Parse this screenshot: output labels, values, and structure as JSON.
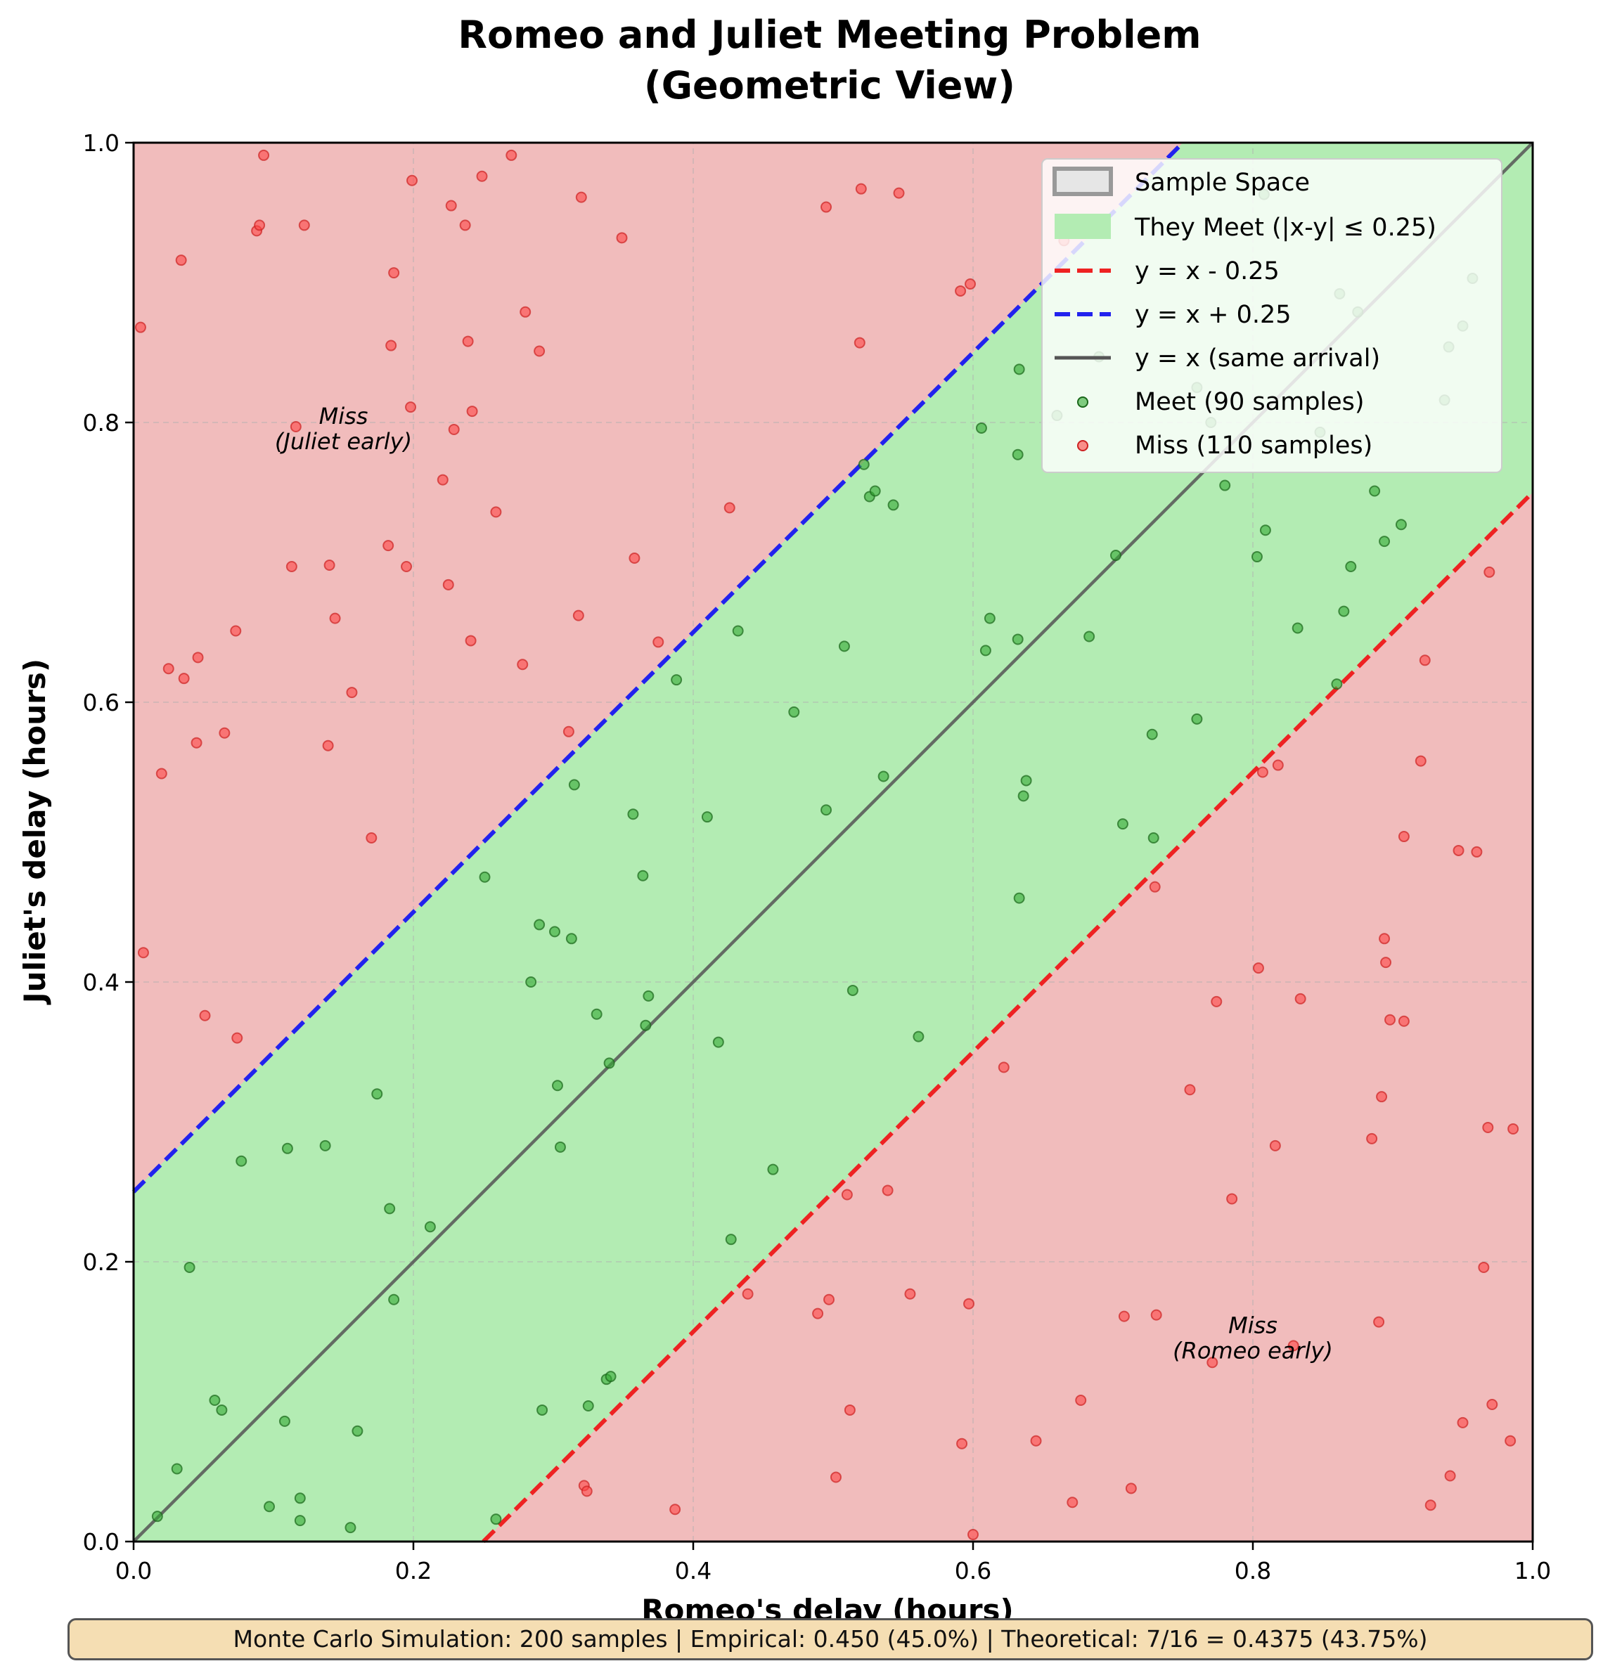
{
  "chart_data": {
    "type": "scatter",
    "title": "Romeo and Juliet Meeting Problem",
    "subtitle": "(Geometric View)",
    "xlabel": "Romeo's delay (hours)",
    "ylabel": "Juliet's delay (hours)",
    "xlim": [
      0,
      1
    ],
    "ylim": [
      0,
      1
    ],
    "xticks": [
      "0.0",
      "0.2",
      "0.4",
      "0.6",
      "0.8",
      "1.0"
    ],
    "yticks": [
      "0.0",
      "0.2",
      "0.4",
      "0.6",
      "0.8",
      "1.0"
    ],
    "grid": true,
    "legend_position": "top-right",
    "tolerance": 0.25,
    "colors": {
      "miss_region": "#f1bcbc",
      "meet_region": "#b3ecb3",
      "lower_line": "#ee2222",
      "upper_line": "#2222ee",
      "diagonal": "#555555",
      "meet_point": "#33aa33",
      "miss_point": "#ff4444",
      "sample_space": "#999999"
    },
    "legend": [
      "Sample Space",
      "They Meet (|x-y| ≤ 0.25)",
      "y = x - 0.25",
      "y = x + 0.25",
      "y = x (same arrival)",
      "Meet (90 samples)",
      "Miss (110 samples)"
    ],
    "annotations": [
      {
        "line1": "Miss",
        "line2": "(Juliet early)",
        "x": 0.15,
        "y": 0.8
      },
      {
        "line1": "Miss",
        "line2": "(Romeo early)",
        "x": 0.8,
        "y": 0.15
      }
    ],
    "meet_points": [
      [
        0.017,
        0.018
      ],
      [
        0.031,
        0.052
      ],
      [
        0.04,
        0.196
      ],
      [
        0.058,
        0.101
      ],
      [
        0.063,
        0.094
      ],
      [
        0.077,
        0.272
      ],
      [
        0.097,
        0.025
      ],
      [
        0.108,
        0.086
      ],
      [
        0.11,
        0.281
      ],
      [
        0.119,
        0.015
      ],
      [
        0.119,
        0.031
      ],
      [
        0.137,
        0.283
      ],
      [
        0.155,
        0.01
      ],
      [
        0.16,
        0.079
      ],
      [
        0.174,
        0.32
      ],
      [
        0.183,
        0.238
      ],
      [
        0.186,
        0.173
      ],
      [
        0.212,
        0.225
      ],
      [
        0.251,
        0.475
      ],
      [
        0.259,
        0.016
      ],
      [
        0.284,
        0.4
      ],
      [
        0.29,
        0.441
      ],
      [
        0.292,
        0.094
      ],
      [
        0.301,
        0.436
      ],
      [
        0.303,
        0.326
      ],
      [
        0.305,
        0.282
      ],
      [
        0.313,
        0.431
      ],
      [
        0.315,
        0.541
      ],
      [
        0.325,
        0.097
      ],
      [
        0.331,
        0.377
      ],
      [
        0.338,
        0.116
      ],
      [
        0.34,
        0.342
      ],
      [
        0.341,
        0.118
      ],
      [
        0.357,
        0.52
      ],
      [
        0.364,
        0.476
      ],
      [
        0.366,
        0.369
      ],
      [
        0.368,
        0.39
      ],
      [
        0.388,
        0.616
      ],
      [
        0.41,
        0.518
      ],
      [
        0.418,
        0.357
      ],
      [
        0.427,
        0.216
      ],
      [
        0.432,
        0.651
      ],
      [
        0.457,
        0.266
      ],
      [
        0.472,
        0.593
      ],
      [
        0.495,
        0.523
      ],
      [
        0.508,
        0.64
      ],
      [
        0.514,
        0.394
      ],
      [
        0.522,
        0.77
      ],
      [
        0.526,
        0.747
      ],
      [
        0.53,
        0.751
      ],
      [
        0.536,
        0.547
      ],
      [
        0.543,
        0.741
      ],
      [
        0.561,
        0.361
      ],
      [
        0.606,
        0.796
      ],
      [
        0.609,
        0.637
      ],
      [
        0.612,
        0.66
      ],
      [
        0.632,
        0.645
      ],
      [
        0.632,
        0.777
      ],
      [
        0.633,
        0.838
      ],
      [
        0.633,
        0.46
      ],
      [
        0.636,
        0.533
      ],
      [
        0.638,
        0.544
      ],
      [
        0.66,
        0.805
      ],
      [
        0.683,
        0.647
      ],
      [
        0.69,
        0.847
      ],
      [
        0.702,
        0.705
      ],
      [
        0.707,
        0.513
      ],
      [
        0.728,
        0.577
      ],
      [
        0.729,
        0.503
      ],
      [
        0.76,
        0.588
      ],
      [
        0.76,
        0.825
      ],
      [
        0.77,
        0.8
      ],
      [
        0.78,
        0.755
      ],
      [
        0.803,
        0.704
      ],
      [
        0.808,
        0.963
      ],
      [
        0.809,
        0.723
      ],
      [
        0.832,
        0.653
      ],
      [
        0.848,
        0.793
      ],
      [
        0.86,
        0.613
      ],
      [
        0.862,
        0.892
      ],
      [
        0.865,
        0.665
      ],
      [
        0.87,
        0.697
      ],
      [
        0.875,
        0.879
      ],
      [
        0.887,
        0.751
      ],
      [
        0.894,
        0.715
      ],
      [
        0.906,
        0.727
      ],
      [
        0.937,
        0.816
      ],
      [
        0.94,
        0.854
      ],
      [
        0.95,
        0.869
      ],
      [
        0.957,
        0.903
      ]
    ],
    "miss_points": [
      [
        0.005,
        0.868
      ],
      [
        0.007,
        0.421
      ],
      [
        0.02,
        0.549
      ],
      [
        0.025,
        0.624
      ],
      [
        0.034,
        0.916
      ],
      [
        0.036,
        0.617
      ],
      [
        0.045,
        0.571
      ],
      [
        0.046,
        0.632
      ],
      [
        0.051,
        0.376
      ],
      [
        0.065,
        0.578
      ],
      [
        0.073,
        0.651
      ],
      [
        0.074,
        0.36
      ],
      [
        0.088,
        0.937
      ],
      [
        0.09,
        0.941
      ],
      [
        0.093,
        0.991
      ],
      [
        0.113,
        0.697
      ],
      [
        0.116,
        0.797
      ],
      [
        0.122,
        0.941
      ],
      [
        0.139,
        0.569
      ],
      [
        0.14,
        0.698
      ],
      [
        0.144,
        0.66
      ],
      [
        0.156,
        0.607
      ],
      [
        0.17,
        0.503
      ],
      [
        0.182,
        0.712
      ],
      [
        0.184,
        0.855
      ],
      [
        0.186,
        0.907
      ],
      [
        0.195,
        0.697
      ],
      [
        0.198,
        0.811
      ],
      [
        0.199,
        0.973
      ],
      [
        0.221,
        0.759
      ],
      [
        0.225,
        0.684
      ],
      [
        0.227,
        0.955
      ],
      [
        0.229,
        0.795
      ],
      [
        0.237,
        0.941
      ],
      [
        0.239,
        0.858
      ],
      [
        0.241,
        0.644
      ],
      [
        0.242,
        0.808
      ],
      [
        0.249,
        0.976
      ],
      [
        0.259,
        0.736
      ],
      [
        0.27,
        0.991
      ],
      [
        0.278,
        0.627
      ],
      [
        0.28,
        0.879
      ],
      [
        0.29,
        0.851
      ],
      [
        0.311,
        0.579
      ],
      [
        0.318,
        0.662
      ],
      [
        0.32,
        0.961
      ],
      [
        0.322,
        0.04
      ],
      [
        0.324,
        0.036
      ],
      [
        0.349,
        0.932
      ],
      [
        0.358,
        0.703
      ],
      [
        0.375,
        0.643
      ],
      [
        0.387,
        0.023
      ],
      [
        0.426,
        0.739
      ],
      [
        0.439,
        0.177
      ],
      [
        0.489,
        0.163
      ],
      [
        0.495,
        0.954
      ],
      [
        0.497,
        0.173
      ],
      [
        0.502,
        0.046
      ],
      [
        0.51,
        0.248
      ],
      [
        0.512,
        0.094
      ],
      [
        0.519,
        0.857
      ],
      [
        0.52,
        0.967
      ],
      [
        0.539,
        0.251
      ],
      [
        0.547,
        0.964
      ],
      [
        0.555,
        0.177
      ],
      [
        0.591,
        0.894
      ],
      [
        0.592,
        0.07
      ],
      [
        0.597,
        0.17
      ],
      [
        0.598,
        0.899
      ],
      [
        0.6,
        0.005
      ],
      [
        0.622,
        0.339
      ],
      [
        0.645,
        0.072
      ],
      [
        0.665,
        0.93
      ],
      [
        0.671,
        0.028
      ],
      [
        0.677,
        0.101
      ],
      [
        0.708,
        0.161
      ],
      [
        0.713,
        0.038
      ],
      [
        0.73,
        0.468
      ],
      [
        0.731,
        0.162
      ],
      [
        0.755,
        0.323
      ],
      [
        0.771,
        0.128
      ],
      [
        0.774,
        0.386
      ],
      [
        0.785,
        0.245
      ],
      [
        0.804,
        0.41
      ],
      [
        0.807,
        0.55
      ],
      [
        0.816,
        0.283
      ],
      [
        0.818,
        0.555
      ],
      [
        0.829,
        0.14
      ],
      [
        0.834,
        0.388
      ],
      [
        0.885,
        0.288
      ],
      [
        0.89,
        0.157
      ],
      [
        0.892,
        0.318
      ],
      [
        0.894,
        0.431
      ],
      [
        0.895,
        0.414
      ],
      [
        0.898,
        0.373
      ],
      [
        0.908,
        0.372
      ],
      [
        0.908,
        0.504
      ],
      [
        0.92,
        0.558
      ],
      [
        0.923,
        0.63
      ],
      [
        0.927,
        0.026
      ],
      [
        0.941,
        0.047
      ],
      [
        0.947,
        0.494
      ],
      [
        0.95,
        0.085
      ],
      [
        0.96,
        0.493
      ],
      [
        0.965,
        0.196
      ],
      [
        0.968,
        0.296
      ],
      [
        0.969,
        0.693
      ],
      [
        0.971,
        0.098
      ],
      [
        0.984,
        0.072
      ],
      [
        0.986,
        0.295
      ]
    ]
  },
  "footer": {
    "text": "Monte Carlo Simulation: 200 samples | Empirical: 0.450 (45.0%) | Theoretical: 7/16 = 0.4375 (43.75%)"
  }
}
